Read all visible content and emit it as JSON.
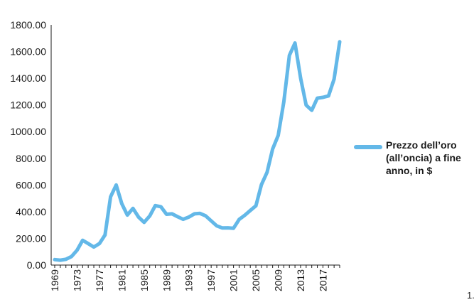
{
  "chart_data": {
    "type": "line",
    "title": "",
    "xlabel": "",
    "ylabel": "",
    "ylim": [
      0,
      1800
    ],
    "yticks": [
      "0.00",
      "200.00",
      "400.00",
      "600.00",
      "800.00",
      "1000.00",
      "1200.00",
      "1400.00",
      "1600.00",
      "1800.00"
    ],
    "xticks": [
      "1969",
      "1973",
      "1977",
      "1981",
      "1985",
      "1989",
      "1993",
      "1997",
      "2001",
      "2005",
      "2009",
      "2013",
      "2017"
    ],
    "grid": false,
    "legend_position": "right",
    "x": [
      1969,
      1970,
      1971,
      1972,
      1973,
      1974,
      1975,
      1976,
      1977,
      1978,
      1979,
      1980,
      1981,
      1982,
      1983,
      1984,
      1985,
      1986,
      1987,
      1988,
      1989,
      1990,
      1991,
      1992,
      1993,
      1994,
      1995,
      1996,
      1997,
      1998,
      1999,
      2000,
      2001,
      2002,
      2003,
      2004,
      2005,
      2006,
      2007,
      2008,
      2009,
      2010,
      2011,
      2012,
      2013,
      2014,
      2015,
      2016,
      2017,
      2018,
      2019,
      2020
    ],
    "series": [
      {
        "name": "Prezzo dell’oro (all’oncia) a fine anno, in $",
        "color": "#63b8e8",
        "values": [
          41,
          37,
          43,
          64,
          112,
          186,
          161,
          135,
          161,
          226,
          512,
          600,
          460,
          375,
          425,
          360,
          320,
          368,
          446,
          437,
          381,
          384,
          362,
          343,
          360,
          384,
          387,
          369,
          331,
          294,
          278,
          279,
          276,
          342,
          373,
          409,
          444,
          603,
          695,
          869,
          972,
          1224,
          1571,
          1664,
          1401,
          1199,
          1160,
          1251,
          1257,
          1268,
          1393,
          1674
        ]
      }
    ]
  },
  "footnote": "1."
}
